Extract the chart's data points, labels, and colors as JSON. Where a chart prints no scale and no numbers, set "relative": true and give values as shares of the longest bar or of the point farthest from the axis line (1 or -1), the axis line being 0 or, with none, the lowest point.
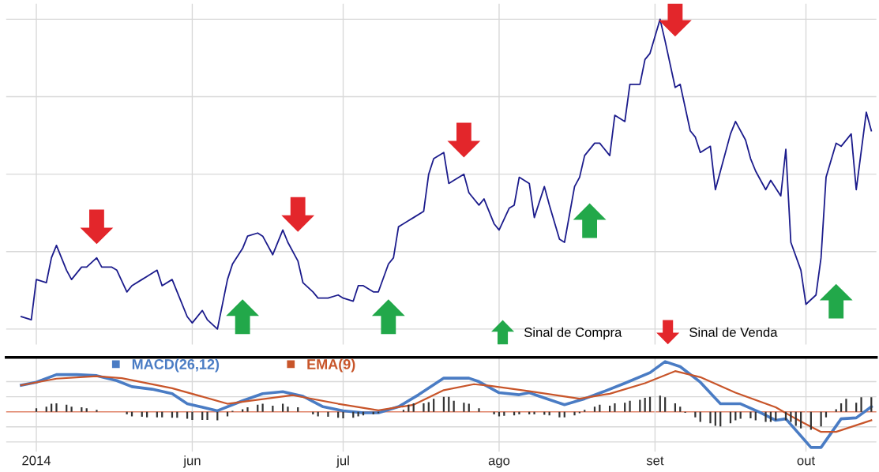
{
  "chart_data": [
    {
      "type": "line",
      "relative": true,
      "xlim": [
        "2014-04-25",
        "2014-10-15"
      ],
      "tick_labels": false,
      "grid": true,
      "legend": "bottom right",
      "xticks": [
        {
          "value": "2014-05-01",
          "label": null
        },
        {
          "value": "2014-06-01",
          "label": null
        },
        {
          "value": "2014-07-01",
          "label": null
        },
        {
          "value": "2014-08-01",
          "label": null
        },
        {
          "value": "2014-09-01",
          "label": null
        },
        {
          "value": "2014-10-01",
          "label": null
        }
      ],
      "series": [
        {
          "color": "#1c1c8c",
          "x": [
            "2014-04-28",
            "2014-04-30",
            "2014-05-01",
            "2014-05-03",
            "2014-05-04",
            "2014-05-05",
            "2014-05-07",
            "2014-05-08",
            "2014-05-10",
            "2014-05-11",
            "2014-05-13",
            "2014-05-14",
            "2014-05-16",
            "2014-05-17",
            "2014-05-19",
            "2014-05-20",
            "2014-05-22",
            "2014-05-23",
            "2014-05-25",
            "2014-05-26",
            "2014-05-28",
            "2014-05-29",
            "2014-05-31",
            "2014-06-01",
            "2014-06-03",
            "2014-06-04",
            "2014-06-06",
            "2014-06-08",
            "2014-06-09",
            "2014-06-11",
            "2014-06-12",
            "2014-06-14",
            "2014-06-15",
            "2014-06-17",
            "2014-06-19",
            "2014-06-20",
            "2014-06-22",
            "2014-06-23",
            "2014-06-25",
            "2014-06-26",
            "2014-06-28",
            "2014-06-30",
            "2014-07-01",
            "2014-07-03",
            "2014-07-04",
            "2014-07-05",
            "2014-07-07",
            "2014-07-08",
            "2014-07-10",
            "2014-07-11",
            "2014-07-12",
            "2014-07-14",
            "2014-07-15",
            "2014-07-17",
            "2014-07-18",
            "2014-07-19",
            "2014-07-21",
            "2014-07-22",
            "2014-07-23",
            "2014-07-25",
            "2014-07-26",
            "2014-07-28",
            "2014-07-29",
            "2014-07-31",
            "2014-08-01",
            "2014-08-03",
            "2014-08-04",
            "2014-08-05",
            "2014-08-07",
            "2014-08-08",
            "2014-08-10",
            "2014-08-11",
            "2014-08-13",
            "2014-08-14",
            "2014-08-16",
            "2014-08-17",
            "2014-08-18",
            "2014-08-20",
            "2014-08-21",
            "2014-08-23",
            "2014-08-24",
            "2014-08-26",
            "2014-08-27",
            "2014-08-29",
            "2014-08-30",
            "2014-08-31",
            "2014-09-02",
            "2014-09-03",
            "2014-09-05",
            "2014-09-06",
            "2014-09-08",
            "2014-09-09",
            "2014-09-10",
            "2014-09-12",
            "2014-09-13",
            "2014-09-14",
            "2014-09-16",
            "2014-09-17",
            "2014-09-19",
            "2014-09-20",
            "2014-09-21",
            "2014-09-23",
            "2014-09-24",
            "2014-09-26",
            "2014-09-27",
            "2014-09-28",
            "2014-09-30",
            "2014-10-01",
            "2014-10-03",
            "2014-10-04",
            "2014-10-05",
            "2014-10-07",
            "2014-10-08",
            "2014-10-10",
            "2014-10-11",
            "2014-10-13",
            "2014-10-14"
          ],
          "values": [
            0.04,
            0.03,
            0.16,
            0.15,
            0.23,
            0.27,
            0.19,
            0.16,
            0.2,
            0.2,
            0.23,
            0.2,
            0.2,
            0.19,
            0.12,
            0.14,
            0.16,
            0.17,
            0.19,
            0.14,
            0.16,
            0.12,
            0.04,
            0.02,
            0.06,
            0.03,
            0,
            0.16,
            0.21,
            0.26,
            0.3,
            0.31,
            0.3,
            0.24,
            0.32,
            0.28,
            0.22,
            0.15,
            0.12,
            0.1,
            0.1,
            0.11,
            0.1,
            0.09,
            0.14,
            0.14,
            0.12,
            0.12,
            0.21,
            0.23,
            0.33,
            0.35,
            0.36,
            0.38,
            0.5,
            0.55,
            0.57,
            0.47,
            0.48,
            0.5,
            0.44,
            0.4,
            0.42,
            0.34,
            0.32,
            0.39,
            0.4,
            0.49,
            0.47,
            0.36,
            0.46,
            0.4,
            0.29,
            0.28,
            0.46,
            0.49,
            0.56,
            0.6,
            0.6,
            0.56,
            0.69,
            0.67,
            0.79,
            0.79,
            0.87,
            0.89,
            1,
            0.93,
            0.78,
            0.79,
            0.64,
            0.62,
            0.57,
            0.59,
            0.45,
            0.51,
            0.63,
            0.67,
            0.61,
            0.55,
            0.51,
            0.45,
            0.48,
            0.43,
            0.58,
            0.28,
            0.19,
            0.08,
            0.11,
            0.23,
            0.49,
            0.6,
            0.59,
            0.63,
            0.45,
            0.7,
            0.64
          ]
        },
        {
          "type": "scatter",
          "name": "Sinal de Compra",
          "color": "#22a84a",
          "x": [
            "2014-06-11",
            "2014-07-10",
            "2014-08-19",
            "2014-10-07"
          ],
          "values": [
            0.04,
            0.04,
            0.35,
            0.09
          ]
        },
        {
          "type": "scatter",
          "name": "Sinal de Venda",
          "color": "#e3262b",
          "x": [
            "2014-05-13",
            "2014-06-22",
            "2014-07-25",
            "2014-09-05"
          ],
          "values": [
            0.33,
            0.37,
            0.61,
            1
          ]
        }
      ]
    },
    {
      "type": "line",
      "relative": true,
      "xlim": [
        "2014-04-25",
        "2014-10-15"
      ],
      "xticks": [
        {
          "value": "2014-05-01",
          "label": "2014"
        },
        {
          "value": "2014-06-01",
          "label": "jun"
        },
        {
          "value": "2014-07-01",
          "label": "jul"
        },
        {
          "value": "2014-08-01",
          "label": "ago"
        },
        {
          "value": "2014-09-01",
          "label": "set"
        },
        {
          "value": "2014-10-01",
          "label": "out"
        }
      ],
      "tick_labels": "x",
      "grid": true,
      "legend": "top left",
      "ref_lines": [
        {
          "axis": "y",
          "value": 0,
          "color": "#e0846a"
        }
      ],
      "series": [
        {
          "type": "bar",
          "color": "#333333",
          "x": [
            "2014-05-01",
            "2014-05-03",
            "2014-05-04",
            "2014-05-05",
            "2014-05-07",
            "2014-05-08",
            "2014-05-10",
            "2014-05-11",
            "2014-05-13",
            "2014-05-19",
            "2014-05-20",
            "2014-05-22",
            "2014-05-23",
            "2014-05-25",
            "2014-05-26",
            "2014-05-28",
            "2014-05-29",
            "2014-05-31",
            "2014-06-01",
            "2014-06-03",
            "2014-06-04",
            "2014-06-06",
            "2014-06-08",
            "2014-06-09",
            "2014-06-11",
            "2014-06-12",
            "2014-06-14",
            "2014-06-15",
            "2014-06-17",
            "2014-06-19",
            "2014-06-20",
            "2014-06-22",
            "2014-06-25",
            "2014-06-26",
            "2014-06-28",
            "2014-06-30",
            "2014-07-01",
            "2014-07-03",
            "2014-07-04",
            "2014-07-05",
            "2014-07-07",
            "2014-07-08",
            "2014-07-13",
            "2014-07-14",
            "2014-07-15",
            "2014-07-17",
            "2014-07-18",
            "2014-07-19",
            "2014-07-21",
            "2014-07-22",
            "2014-07-23",
            "2014-07-25",
            "2014-07-26",
            "2014-07-28",
            "2014-07-31",
            "2014-08-01",
            "2014-08-02",
            "2014-08-04",
            "2014-08-05",
            "2014-08-07",
            "2014-08-08",
            "2014-08-10",
            "2014-08-11",
            "2014-08-13",
            "2014-08-14",
            "2014-08-16",
            "2014-08-17",
            "2014-08-18",
            "2014-08-20",
            "2014-08-21",
            "2014-08-23",
            "2014-08-24",
            "2014-08-26",
            "2014-08-27",
            "2014-08-29",
            "2014-08-30",
            "2014-08-31",
            "2014-09-02",
            "2014-09-03",
            "2014-09-05",
            "2014-09-06",
            "2014-09-07",
            "2014-09-09",
            "2014-09-10",
            "2014-09-12",
            "2014-09-13",
            "2014-09-14",
            "2014-09-16",
            "2014-09-17",
            "2014-09-18",
            "2014-09-20",
            "2014-09-21",
            "2014-09-23",
            "2014-09-24",
            "2014-09-25",
            "2014-09-27",
            "2014-09-28",
            "2014-09-29",
            "2014-09-30",
            "2014-10-02",
            "2014-10-04",
            "2014-10-05",
            "2014-10-07",
            "2014-10-08",
            "2014-10-09",
            "2014-10-11",
            "2014-10-12",
            "2014-10-14"
          ],
          "values": [
            0.07,
            0.1,
            0.16,
            0.17,
            0.14,
            0.1,
            0.09,
            0.07,
            0.04,
            -0.05,
            -0.09,
            -0.1,
            -0.11,
            -0.11,
            -0.11,
            -0.12,
            -0.12,
            -0.14,
            -0.16,
            -0.16,
            -0.16,
            -0.17,
            -0.09,
            0.02,
            0.05,
            0.09,
            0.14,
            0.16,
            0.12,
            0.16,
            0.1,
            0.09,
            -0.05,
            -0.09,
            -0.1,
            -0.12,
            -0.13,
            -0.12,
            -0.09,
            -0.07,
            -0.05,
            -0.03,
            0.04,
            0.14,
            0.17,
            0.17,
            0.19,
            0.26,
            0.3,
            0.3,
            0.22,
            0.18,
            0.16,
            0.07,
            -0.05,
            -0.09,
            -0.08,
            -0.07,
            -0.05,
            -0.05,
            -0.05,
            -0.06,
            -0.07,
            -0.11,
            -0.11,
            -0.07,
            -0.03,
            0.04,
            0.1,
            0.14,
            0.12,
            0.17,
            0.18,
            0.22,
            0.24,
            0.28,
            0.3,
            0.32,
            0.29,
            0.17,
            0.1,
            -0.02,
            -0.11,
            -0.2,
            -0.23,
            -0.28,
            -0.29,
            -0.23,
            -0.17,
            -0.14,
            -0.13,
            -0.17,
            -0.2,
            -0.2,
            -0.17,
            -0.17,
            -0.2,
            -0.28,
            -0.33,
            -0.36,
            -0.29,
            -0.11,
            0.05,
            0.17,
            0.26,
            0.18,
            0.29,
            0.29
          ]
        },
        {
          "name": "MACD(26,12)",
          "color": "#4a7cc4",
          "x": [
            "2014-04-28",
            "2014-05-01",
            "2014-05-05",
            "2014-05-09",
            "2014-05-13",
            "2014-05-17",
            "2014-05-20",
            "2014-05-24",
            "2014-05-28",
            "2014-05-31",
            "2014-06-06",
            "2014-06-11",
            "2014-06-15",
            "2014-06-19",
            "2014-06-23",
            "2014-06-27",
            "2014-07-01",
            "2014-07-05",
            "2014-07-08",
            "2014-07-12",
            "2014-07-16",
            "2014-07-21",
            "2014-07-26",
            "2014-07-28",
            "2014-08-01",
            "2014-08-05",
            "2014-08-07",
            "2014-08-09",
            "2014-08-14",
            "2014-08-18",
            "2014-08-22",
            "2014-08-26",
            "2014-08-31",
            "2014-09-03",
            "2014-09-06",
            "2014-09-10",
            "2014-09-14",
            "2014-09-18",
            "2014-09-22",
            "2014-09-25",
            "2014-09-27",
            "2014-10-02",
            "2014-10-04",
            "2014-10-08",
            "2014-10-11",
            "2014-10-14"
          ],
          "values": [
            0.53,
            0.59,
            0.74,
            0.74,
            0.72,
            0.62,
            0.5,
            0.45,
            0.36,
            0.16,
            0.02,
            0.22,
            0.36,
            0.4,
            0.31,
            0.1,
            0.02,
            -0.02,
            -0.02,
            0.1,
            0.34,
            0.67,
            0.67,
            0.6,
            0.38,
            0.34,
            0.38,
            0.31,
            0.14,
            0.26,
            0.41,
            0.57,
            0.78,
            1,
            0.9,
            0.59,
            0.16,
            0.16,
            -0.02,
            -0.17,
            -0.14,
            -0.71,
            -0.71,
            -0.14,
            -0.12,
            0.1
          ]
        },
        {
          "name": "EMA(9)",
          "color": "#c8552a",
          "x": [
            "2014-04-28",
            "2014-05-05",
            "2014-05-13",
            "2014-05-18",
            "2014-05-28",
            "2014-06-08",
            "2014-06-21",
            "2014-06-30",
            "2014-07-08",
            "2014-07-15",
            "2014-07-21",
            "2014-07-27",
            "2014-07-30",
            "2014-08-07",
            "2014-08-17",
            "2014-08-23",
            "2014-08-30",
            "2014-09-05",
            "2014-09-10",
            "2014-09-17",
            "2014-09-25",
            "2014-09-29",
            "2014-10-04",
            "2014-10-07",
            "2014-10-14"
          ],
          "values": [
            0.53,
            0.66,
            0.71,
            0.67,
            0.47,
            0.16,
            0.33,
            0.16,
            0.03,
            0.14,
            0.43,
            0.55,
            0.52,
            0.41,
            0.26,
            0.36,
            0.57,
            0.81,
            0.69,
            0.38,
            0.09,
            -0.14,
            -0.4,
            -0.4,
            -0.17
          ]
        }
      ]
    }
  ]
}
